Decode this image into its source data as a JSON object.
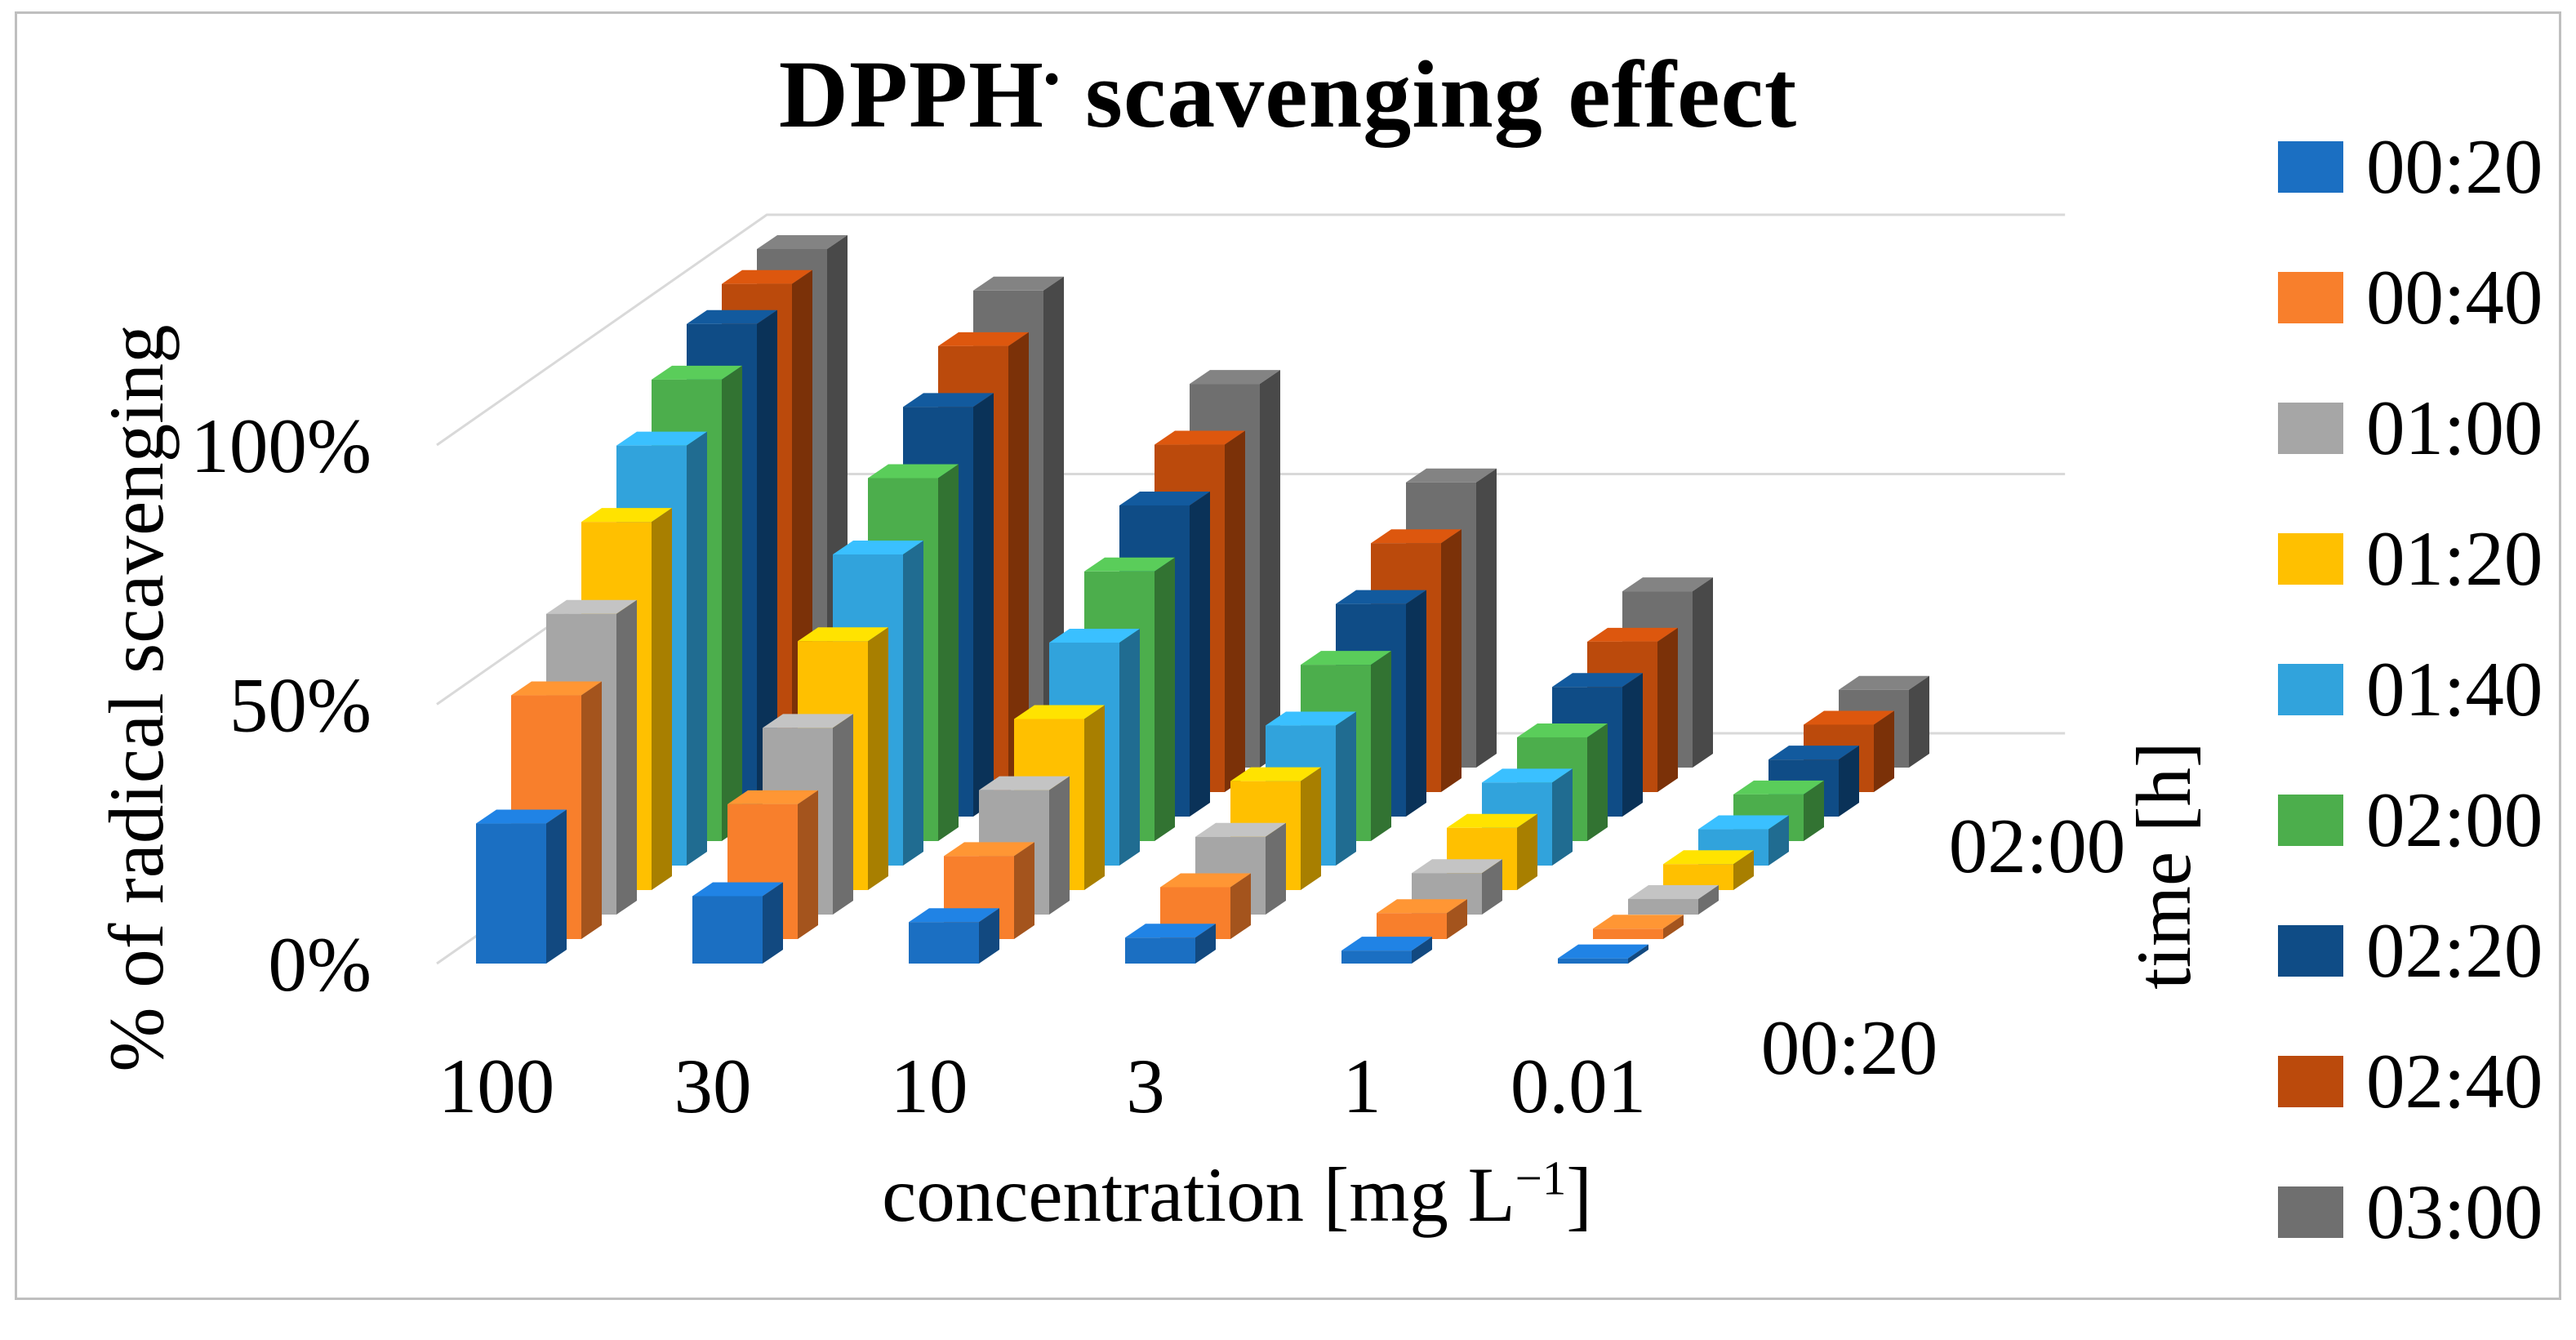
{
  "chart_data": {
    "type": "bar",
    "variant": "3d-column",
    "title": "DPPH• scavenging effect",
    "title_parts": {
      "prefix": "DPPH",
      "radical": "•",
      "suffix": " scavenging effect"
    },
    "xlabel": "concentration [mg L−1]",
    "xlabel_parts": {
      "prefix": "concentration [mg L",
      "sup": "−1",
      "suffix": "]"
    },
    "ylabel": "% of radical scavenging",
    "zlabel": "time [h]",
    "categories": [
      "100",
      "30",
      "10",
      "3",
      "1",
      "0.01"
    ],
    "y_tick_labels": [
      "0%",
      "50%",
      "100%"
    ],
    "y_tick_values": [
      0,
      50,
      100
    ],
    "z_tick_labels_visible": [
      "00:20",
      "02:00"
    ],
    "ylim": [
      0,
      100
    ],
    "grid": true,
    "legend_position": "right",
    "colors": {
      "grid_line": "#d9d9d9",
      "chart_border": "#bfbfbf",
      "text": "#000000"
    },
    "series": [
      {
        "name": "00:20",
        "color": "#1b6fc2",
        "values": [
          27,
          13,
          8,
          5,
          2.5,
          1
        ]
      },
      {
        "name": "00:40",
        "color": "#f87f2c",
        "values": [
          47,
          26,
          16,
          10,
          5,
          2
        ]
      },
      {
        "name": "01:00",
        "color": "#a6a6a6",
        "values": [
          58,
          36,
          24,
          15,
          8,
          3
        ]
      },
      {
        "name": "01:20",
        "color": "#ffc000",
        "values": [
          71,
          48,
          33,
          21,
          12,
          5
        ]
      },
      {
        "name": "01:40",
        "color": "#31a3dc",
        "values": [
          81,
          60,
          43,
          27,
          16,
          7
        ]
      },
      {
        "name": "02:00",
        "color": "#4cae4c",
        "values": [
          89,
          70,
          52,
          34,
          20,
          9
        ]
      },
      {
        "name": "02:20",
        "color": "#0f4c86",
        "values": [
          95,
          79,
          60,
          41,
          25,
          11
        ]
      },
      {
        "name": "02:40",
        "color": "#bb4a0c",
        "values": [
          98,
          86,
          67,
          48,
          29,
          13
        ]
      },
      {
        "name": "03:00",
        "color": "#6f6f6f",
        "values": [
          100,
          92,
          74,
          55,
          34,
          15
        ]
      }
    ]
  }
}
